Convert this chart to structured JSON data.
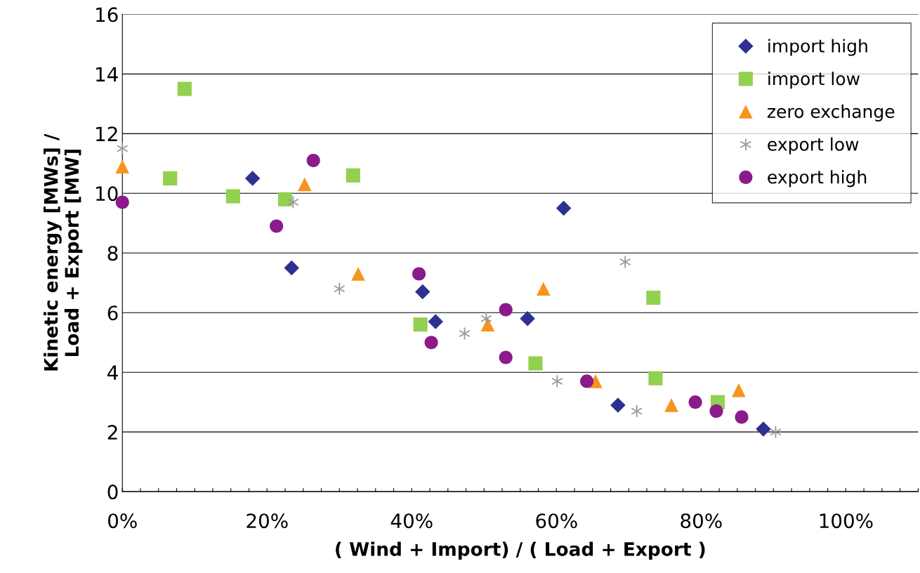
{
  "chart_data": {
    "type": "scatter",
    "xlabel": "( Wind + Import) / ( Load + Export )",
    "ylabel": "Kinetic energy [MWs] /\nLoad + Export [MW]",
    "xlim": [
      0,
      110
    ],
    "ylim": [
      0,
      16
    ],
    "xticks": [
      {
        "value": 0,
        "label": "0%"
      },
      {
        "value": 2.5,
        "label": null
      },
      {
        "value": 5,
        "label": null
      },
      {
        "value": 7.5,
        "label": null
      },
      {
        "value": 10,
        "label": null
      },
      {
        "value": 12.5,
        "label": null
      },
      {
        "value": 15,
        "label": null
      },
      {
        "value": 17.5,
        "label": null
      },
      {
        "value": 20,
        "label": "20%"
      },
      {
        "value": 22.5,
        "label": null
      },
      {
        "value": 25,
        "label": null
      },
      {
        "value": 27.5,
        "label": null
      },
      {
        "value": 30,
        "label": null
      },
      {
        "value": 32.5,
        "label": null
      },
      {
        "value": 35,
        "label": null
      },
      {
        "value": 37.5,
        "label": null
      },
      {
        "value": 40,
        "label": "40%"
      },
      {
        "value": 42.5,
        "label": null
      },
      {
        "value": 45,
        "label": null
      },
      {
        "value": 47.5,
        "label": null
      },
      {
        "value": 50,
        "label": null
      },
      {
        "value": 52.5,
        "label": null
      },
      {
        "value": 55,
        "label": null
      },
      {
        "value": 57.5,
        "label": null
      },
      {
        "value": 60,
        "label": "60%"
      },
      {
        "value": 62.5,
        "label": null
      },
      {
        "value": 65,
        "label": null
      },
      {
        "value": 67.5,
        "label": null
      },
      {
        "value": 70,
        "label": null
      },
      {
        "value": 72.5,
        "label": null
      },
      {
        "value": 75,
        "label": null
      },
      {
        "value": 77.5,
        "label": null
      },
      {
        "value": 80,
        "label": "80%"
      },
      {
        "value": 82.5,
        "label": null
      },
      {
        "value": 85,
        "label": null
      },
      {
        "value": 87.5,
        "label": null
      },
      {
        "value": 90,
        "label": null
      },
      {
        "value": 92.5,
        "label": null
      },
      {
        "value": 95,
        "label": null
      },
      {
        "value": 97.5,
        "label": null
      },
      {
        "value": 100,
        "label": "100%"
      },
      {
        "value": 102.5,
        "label": null
      },
      {
        "value": 105,
        "label": null
      },
      {
        "value": 107.5,
        "label": null
      },
      {
        "value": 110,
        "label": null
      }
    ],
    "yticks": [
      0,
      2,
      4,
      6,
      8,
      10,
      12,
      14,
      16
    ],
    "grid": "y",
    "legend": "top right",
    "series": [
      {
        "name": "import high",
        "color": "#2e3192",
        "marker": "diamond",
        "x": [
          18.0,
          23.4,
          41.5,
          43.3,
          56.0,
          61.0,
          68.5,
          88.6
        ],
        "values": [
          10.5,
          7.5,
          6.7,
          5.7,
          5.8,
          9.5,
          2.9,
          2.1
        ]
      },
      {
        "name": "import low",
        "color": "#92d050",
        "marker": "square",
        "x": [
          8.6,
          6.6,
          15.3,
          22.5,
          31.9,
          41.2,
          57.1,
          73.4,
          73.7,
          82.3
        ],
        "values": [
          13.5,
          10.5,
          9.9,
          9.8,
          10.6,
          5.6,
          4.3,
          6.5,
          3.8,
          3.0
        ]
      },
      {
        "name": "zero exchange",
        "color": "#f7941d",
        "marker": "triangle",
        "x": [
          0,
          25.2,
          32.6,
          50.5,
          58.2,
          65.4,
          75.9,
          85.2
        ],
        "values": [
          10.9,
          10.3,
          7.3,
          5.6,
          6.8,
          3.7,
          2.9,
          3.4
        ]
      },
      {
        "name": "export low",
        "color": "#999999",
        "marker": "cross",
        "x": [
          0,
          23.6,
          30.0,
          47.3,
          50.3,
          60.1,
          69.5,
          71.1,
          90.3
        ],
        "values": [
          11.5,
          9.7,
          6.8,
          5.3,
          5.8,
          3.7,
          7.7,
          2.7,
          2.0
        ]
      },
      {
        "name": "export high",
        "color": "#8b1a8b",
        "marker": "circle",
        "x": [
          0,
          21.3,
          26.4,
          41.0,
          42.7,
          53.0,
          53.0,
          64.2,
          79.2,
          82.1,
          85.6
        ],
        "values": [
          9.7,
          8.9,
          11.1,
          7.3,
          5.0,
          6.1,
          4.5,
          3.7,
          3.0,
          2.7,
          2.5
        ]
      }
    ]
  }
}
